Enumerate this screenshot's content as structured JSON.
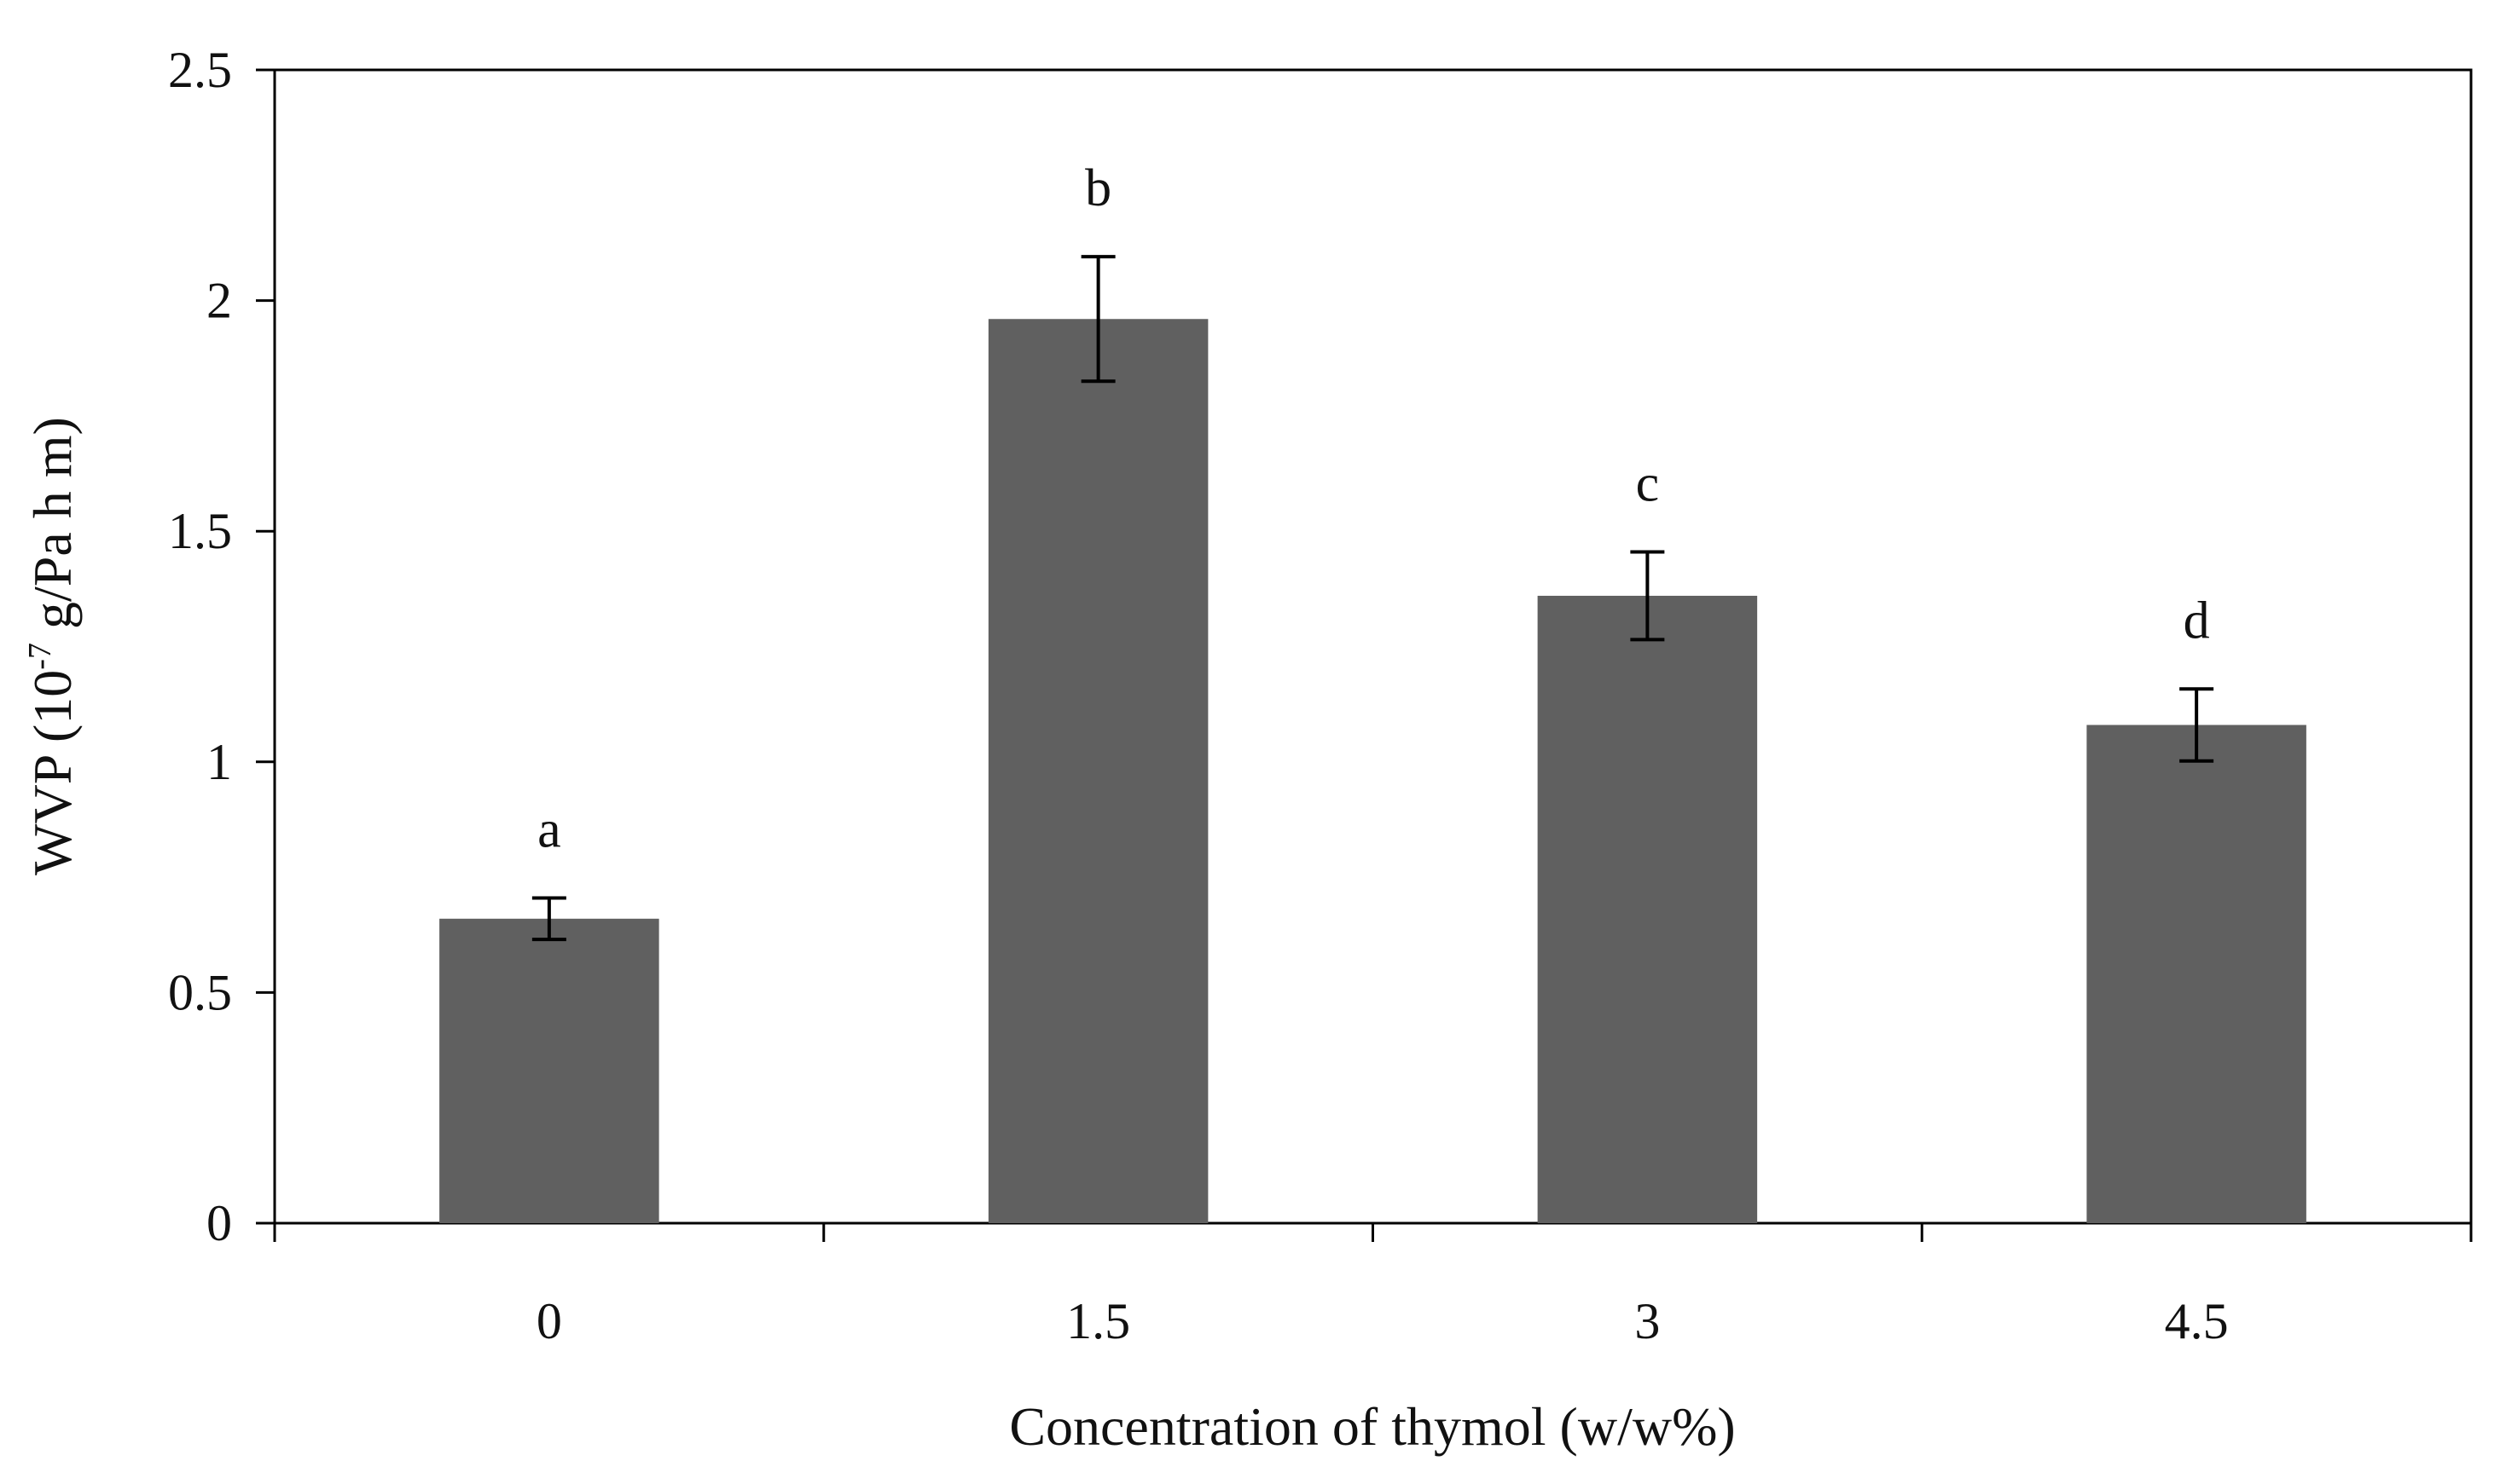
{
  "chart_data": {
    "type": "bar",
    "categories": [
      "0",
      "1.5",
      "3",
      "4.5"
    ],
    "values": [
      0.66,
      1.96,
      1.36,
      1.08
    ],
    "errors": [
      0.045,
      0.135,
      0.095,
      0.078
    ],
    "labels": [
      "a",
      "b",
      "c",
      "d"
    ],
    "xlabel": "Concentration of thymol (w/w%)",
    "ylabel": {
      "prefix": "WVP  (10",
      "superscript": "-7",
      "suffix": " g/Pa h m)"
    },
    "ylim": [
      0,
      2.5
    ],
    "yticks": [
      "0",
      "0.5",
      "1",
      "1.5",
      "2",
      "2.5"
    ],
    "ytick_values": [
      0,
      0.5,
      1,
      1.5,
      2,
      2.5
    ],
    "grid": false,
    "bar_color": "#606060",
    "axis_color": "#000000"
  }
}
